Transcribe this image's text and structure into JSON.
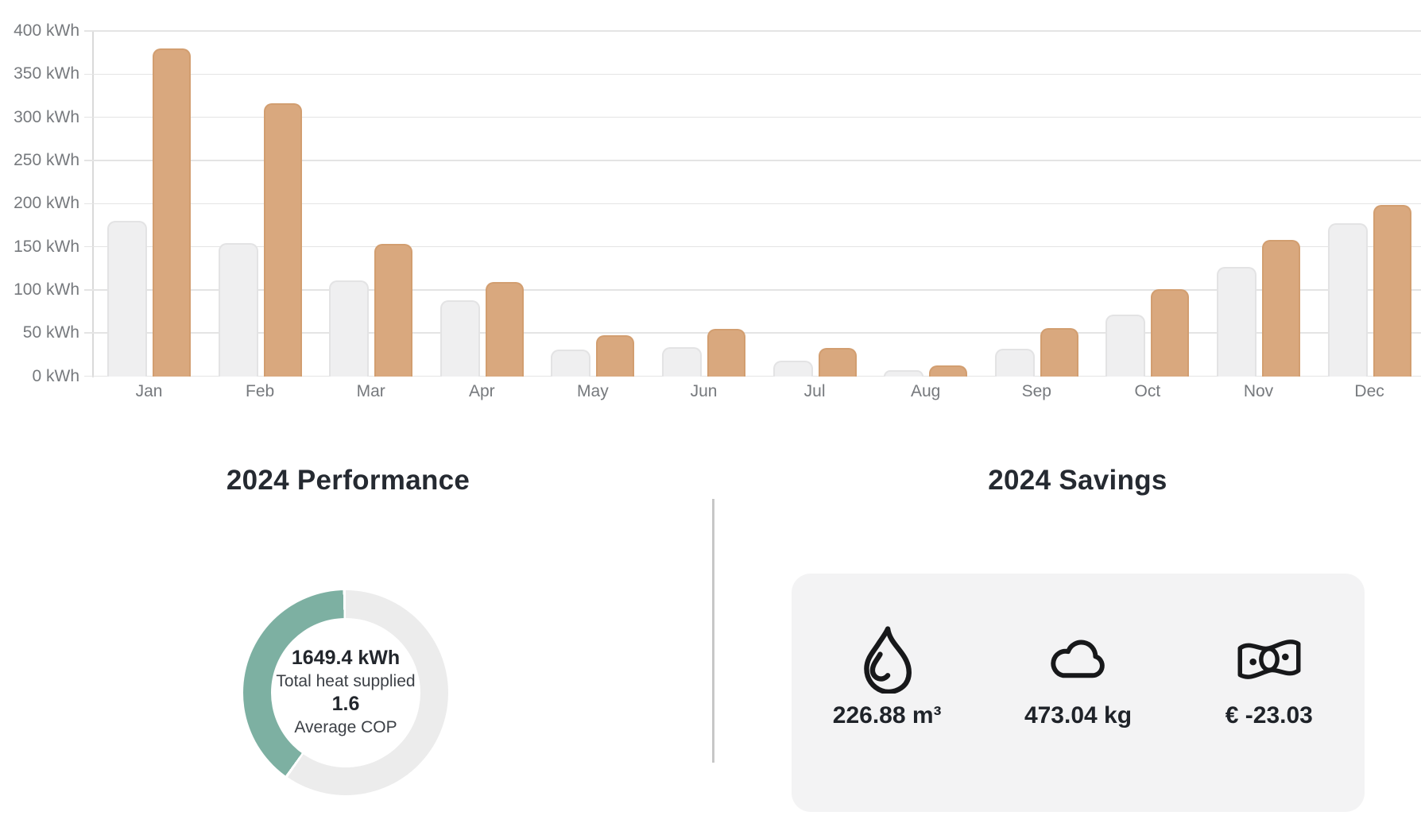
{
  "chart_data": [
    {
      "type": "bar",
      "title": "",
      "categories": [
        "Jan",
        "Feb",
        "Mar",
        "Apr",
        "May",
        "Jun",
        "Jul",
        "Aug",
        "Sep",
        "Oct",
        "Nov",
        "Dec"
      ],
      "series": [
        {
          "name": "series_gray",
          "color": "#efeff0",
          "values": [
            180,
            155,
            111,
            88,
            31,
            34,
            18,
            7,
            32,
            72,
            127,
            178
          ]
        },
        {
          "name": "series_orange",
          "color": "#d9a87e",
          "values": [
            380,
            317,
            154,
            110,
            48,
            55,
            33,
            13,
            56,
            101,
            158,
            199
          ]
        }
      ],
      "xlabel": "",
      "ylabel": "",
      "unit": "kWh",
      "ylim": [
        0,
        400
      ],
      "y_tick_step": 50,
      "y_ticks": [
        "0 kWh",
        "50 kWh",
        "100 kWh",
        "150 kWh",
        "200 kWh",
        "250 kWh",
        "300 kWh",
        "350 kWh",
        "400 kWh"
      ],
      "grid": true,
      "legend": "none"
    },
    {
      "type": "pie",
      "subtype": "donut",
      "fraction_filled": 0.4,
      "filled_color": "#7db0a2",
      "track_color": "#ececec",
      "center_text": [
        "1649.4 kWh",
        "Total heat supplied",
        "1.6",
        "Average COP"
      ]
    }
  ],
  "performance": {
    "heading": "2024 Performance",
    "total_value": "1649.4 kWh",
    "total_label": "Total heat supplied",
    "cop_value": "1.6",
    "cop_label": "Average COP"
  },
  "savings": {
    "heading": "2024 Savings",
    "items": [
      {
        "icon": "flame-icon",
        "value": "226.88 m³"
      },
      {
        "icon": "cloud-icon",
        "value": "473.04 kg"
      },
      {
        "icon": "money-icon",
        "value": "€ -23.03"
      }
    ]
  },
  "colors": {
    "bar_gray": "#efeff0",
    "bar_orange": "#d9a87e",
    "donut_teal": "#7db0a2",
    "donut_track": "#ececec",
    "card_bg": "#f3f3f4",
    "axis_text": "#76797d",
    "heading_text": "#252a31"
  }
}
